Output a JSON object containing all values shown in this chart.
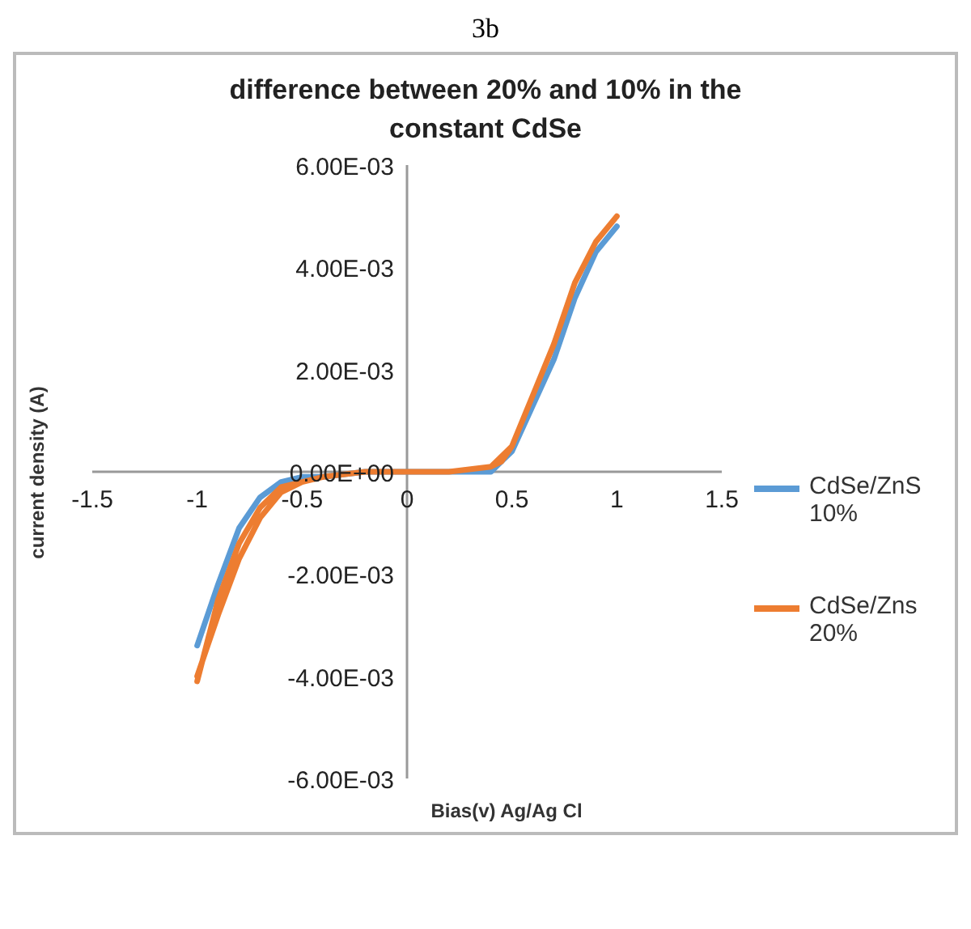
{
  "chart_data": {
    "type": "line",
    "title": "difference between 20% and 10% in the constant CdSe",
    "xlabel": "Bias(v) Ag/Ag Cl",
    "ylabel": "current density (A)",
    "annotations": [
      "3b"
    ],
    "xlim": [
      -1.5,
      1.5
    ],
    "xticks": [
      -1.5,
      -1,
      -0.5,
      0,
      0.5,
      1,
      1.5
    ],
    "ylim": [
      -0.006,
      0.006
    ],
    "yticks": [
      {
        "value": -0.006,
        "label": "-6.00E-03"
      },
      {
        "value": -0.004,
        "label": "-4.00E-03"
      },
      {
        "value": -0.002,
        "label": "-2.00E-03"
      },
      {
        "value": 0,
        "label": "0.00E+00"
      },
      {
        "value": 0.002,
        "label": "2.00E-03"
      },
      {
        "value": 0.004,
        "label": "4.00E-03"
      },
      {
        "value": 0.006,
        "label": "6.00E-03"
      }
    ],
    "grid": false,
    "legend": "right",
    "marker": "none",
    "line_style": "solid",
    "series": [
      {
        "name": "CdSe/ZnS 10%",
        "color": "#5b9bd5",
        "x": [
          -1,
          -0.9,
          -0.8,
          -0.7,
          -0.6,
          -0.5,
          -0.4,
          -0.2,
          0,
          0.2,
          0.4,
          0.45,
          0.5,
          0.6,
          0.7,
          0.8,
          0.9,
          1
        ],
        "values": [
          -0.0034,
          -0.0022,
          -0.0011,
          -0.0005,
          -0.0002,
          -0.0001,
          -0.0001,
          0,
          0,
          0,
          0,
          0.0002,
          0.0004,
          0.0013,
          0.0022,
          0.0034,
          0.0043,
          0.0048
        ]
      },
      {
        "name": "CdSe/Zns 20%",
        "color": "#ed7d31",
        "x": [
          -1,
          -0.9,
          -0.8,
          -0.7,
          -0.6,
          -0.5,
          -0.4,
          -0.2,
          0,
          0.2,
          0.4,
          0.45,
          0.5,
          0.6,
          0.7,
          0.8,
          0.9,
          1,
          0.9,
          0.8,
          0.7,
          0.6,
          0.5,
          0.4,
          0.2,
          0,
          -0.2,
          -0.4,
          -0.5,
          -0.6,
          -0.7,
          -0.8,
          -0.9,
          -1
        ],
        "values": [
          -0.004,
          -0.0028,
          -0.0017,
          -0.0009,
          -0.0004,
          -0.0002,
          -0.0001,
          0,
          0,
          0,
          0.0001,
          0.0002,
          0.0005,
          0.0015,
          0.0025,
          0.0037,
          0.0045,
          0.005,
          0.0045,
          0.0037,
          0.0025,
          0.0015,
          0.0005,
          0.0001,
          0,
          0,
          0,
          -0.0001,
          -0.0002,
          -0.0003,
          -0.0007,
          -0.0014,
          -0.0025,
          -0.0041
        ]
      }
    ]
  }
}
